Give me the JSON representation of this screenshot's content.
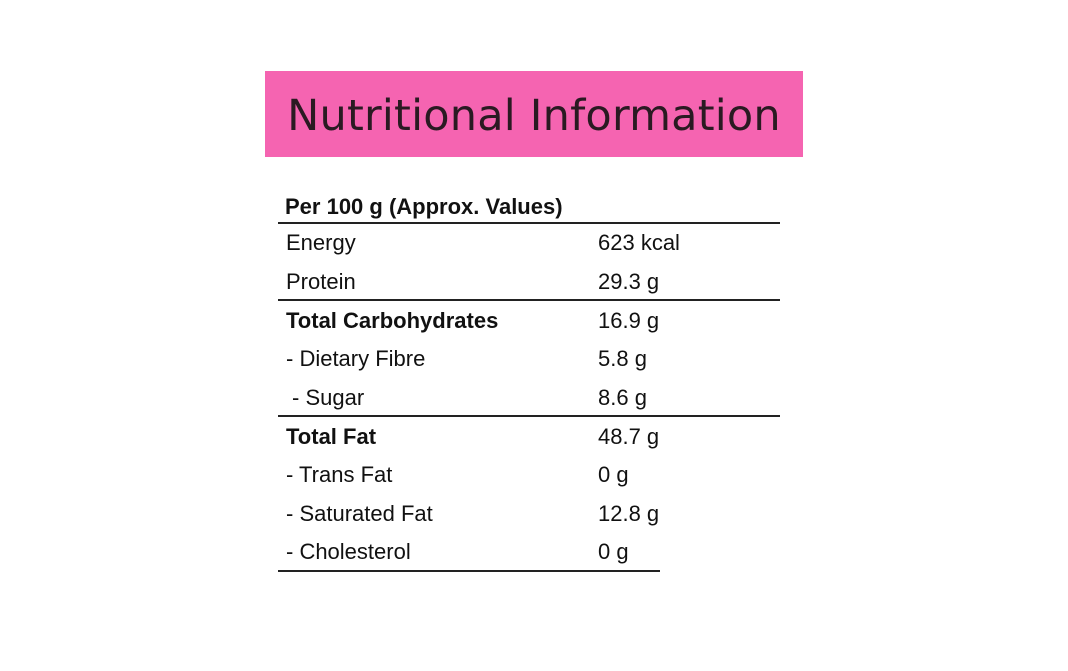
{
  "header": {
    "title": "Nutritional Information"
  },
  "table": {
    "header": "Per 100 g (Approx. Values)",
    "rows": [
      [
        "Energy",
        "623 kcal"
      ],
      [
        "Protein",
        "29.3 g"
      ],
      [
        "Total Carbohydrates",
        "16.9 g"
      ],
      [
        "- Dietary Fibre",
        "5.8 g"
      ],
      [
        "- Sugar",
        "8.6 g"
      ],
      [
        "Total Fat",
        "48.7 g"
      ],
      [
        "- Trans Fat",
        "0 g"
      ],
      [
        "- Saturated Fat",
        "12.8 g"
      ],
      [
        "- Cholesterol",
        "0 g"
      ]
    ]
  }
}
